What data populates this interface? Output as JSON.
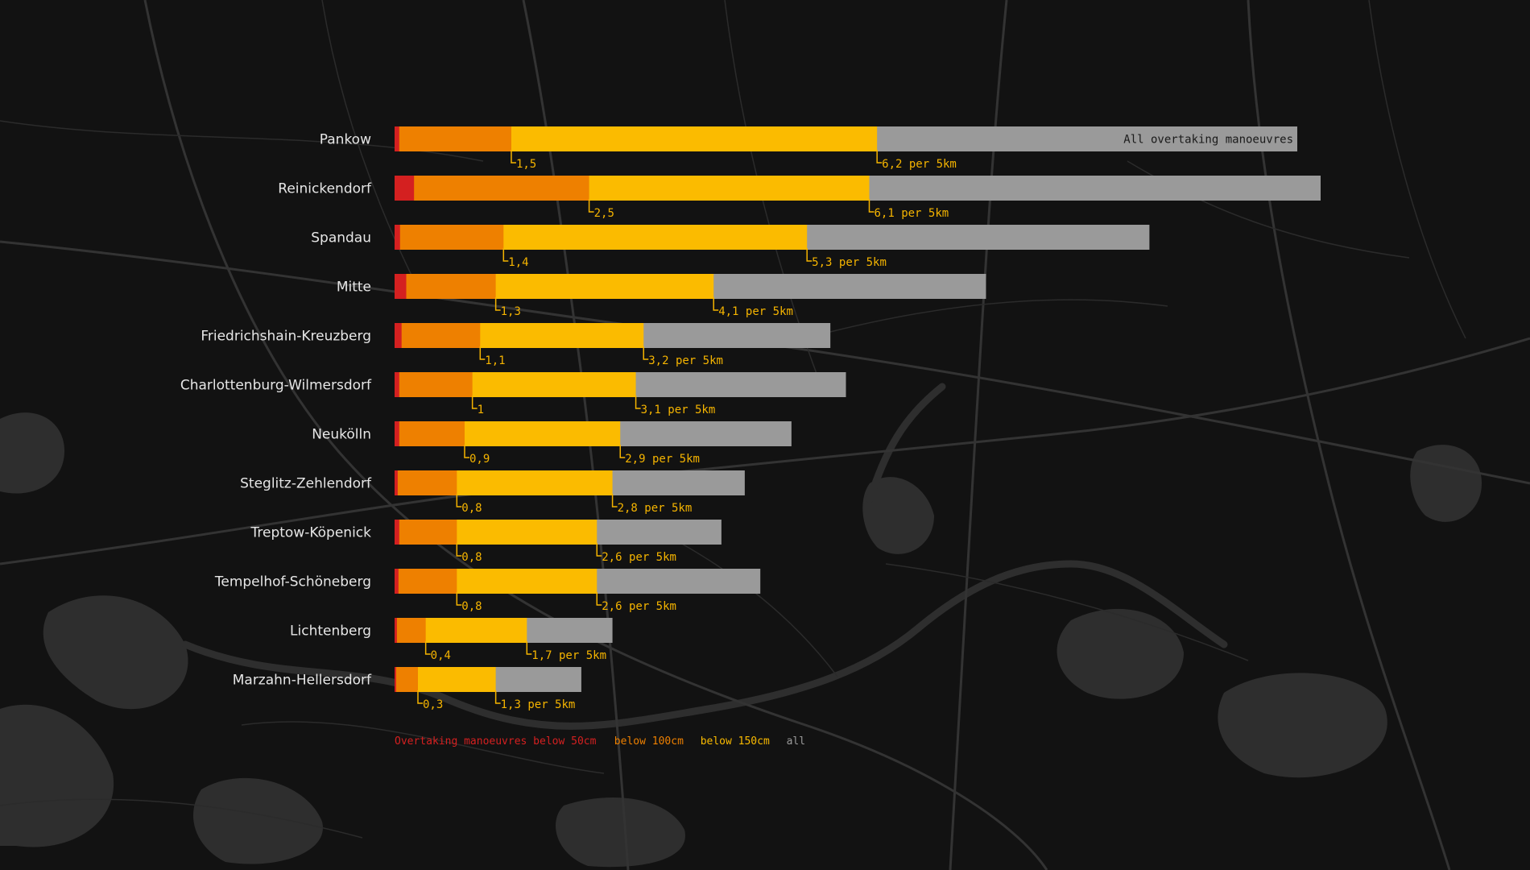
{
  "colors": {
    "background": "#121212",
    "map_road": "#2b2b2b",
    "map_road_major": "#333333",
    "map_water": "#2e2e2e",
    "below_50": "#d42020",
    "below_100": "#ee8000",
    "below_150": "#fbbb00",
    "all": "#9a9a9a",
    "label_text": "#e6e6e6",
    "annotation": "#f5b400",
    "legend_all": "#9a9a9a"
  },
  "chart_data": {
    "type": "bar",
    "orientation": "horizontal",
    "stacked": true,
    "unit": "per 5km",
    "categories": [
      "Pankow",
      "Reinickendorf",
      "Spandau",
      "Mitte",
      "Friedrichshain-Kreuzberg",
      "Charlottenburg-Wilmersdorf",
      "Neukölln",
      "Steglitz-Zehlendorf",
      "Treptow-Köpenick",
      "Tempelhof-Schöneberg",
      "Lichtenberg",
      "Marzahn-Hellersdorf"
    ],
    "series": [
      {
        "name": "Overtaking manoeuvres below 50cm",
        "key": "below_50",
        "values": [
          0.06,
          0.25,
          0.07,
          0.15,
          0.09,
          0.06,
          0.06,
          0.04,
          0.06,
          0.05,
          0.03,
          0.02
        ]
      },
      {
        "name": "below 100cm",
        "key": "below_100",
        "values": [
          1.5,
          2.5,
          1.4,
          1.3,
          1.1,
          1,
          0.9,
          0.8,
          0.8,
          0.8,
          0.4,
          0.3
        ]
      },
      {
        "name": "below 150cm",
        "key": "below_150",
        "values": [
          6.2,
          6.1,
          5.3,
          4.1,
          3.2,
          3.1,
          2.9,
          2.8,
          2.6,
          2.6,
          1.7,
          1.3
        ]
      },
      {
        "name": "all",
        "key": "all",
        "values": [
          11.6,
          11.9,
          9.7,
          7.6,
          5.6,
          5.8,
          5.1,
          4.5,
          4.2,
          4.7,
          2.8,
          2.4
        ]
      }
    ],
    "value_labels_below_100": [
      "1,5",
      "2,5",
      "1,4",
      "1,3",
      "1,1",
      "1",
      "0,9",
      "0,8",
      "0,8",
      "0,8",
      "0,4",
      "0,3"
    ],
    "value_labels_below_150": [
      "6,2 per 5km",
      "6,1 per 5km",
      "5,3 per 5km",
      "4,1 per 5km",
      "3,2 per 5km",
      "3,1 per 5km",
      "2,9 per 5km",
      "2,8 per 5km",
      "2,6 per 5km",
      "2,6 per 5km",
      "1,7 per 5km",
      "1,3 per 5km"
    ],
    "inbar_annotation": "All overtaking manoeuvres",
    "legend_position": "bottom-left"
  },
  "legend": [
    {
      "label": "Overtaking manoeuvres below 50cm",
      "color_key": "below_50"
    },
    {
      "label": "below 100cm",
      "color_key": "below_100"
    },
    {
      "label": "below 150cm",
      "color_key": "below_150"
    },
    {
      "label": "all",
      "color_key": "legend_all"
    }
  ]
}
